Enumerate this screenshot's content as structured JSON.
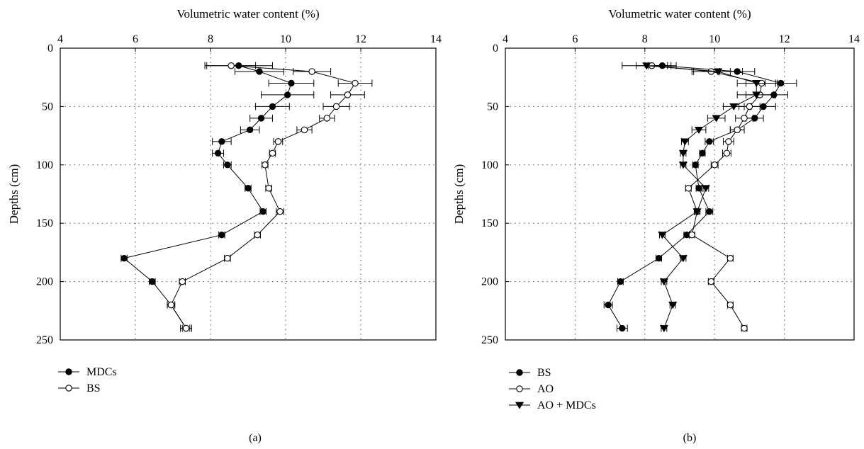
{
  "chart_data": [
    {
      "id": "a",
      "type": "scatter",
      "panel_label": "(a)",
      "xlabel": "Volumetric water content (%)",
      "ylabel": "Depths (cm)",
      "xlim": [
        4,
        14
      ],
      "ylim": [
        0,
        250
      ],
      "y_inverted": true,
      "x_ticks": [
        4,
        6,
        8,
        10,
        12,
        14
      ],
      "y_ticks": [
        0,
        50,
        100,
        150,
        200,
        250
      ],
      "grid": true,
      "legend_position": "below-left",
      "series": [
        {
          "name": "MDCs",
          "marker": "filled-circle",
          "points": [
            {
              "x": 8.75,
              "y": 15,
              "err": 0.9
            },
            {
              "x": 9.3,
              "y": 20,
              "err": 0.65
            },
            {
              "x": 10.15,
              "y": 30,
              "err": 0.6
            },
            {
              "x": 10.05,
              "y": 40,
              "err": 0.7
            },
            {
              "x": 9.65,
              "y": 50,
              "err": 0.45
            },
            {
              "x": 9.35,
              "y": 60,
              "err": 0.3
            },
            {
              "x": 9.05,
              "y": 70,
              "err": 0.25
            },
            {
              "x": 8.3,
              "y": 80,
              "err": 0.25
            },
            {
              "x": 8.2,
              "y": 90,
              "err": 0.15
            },
            {
              "x": 8.45,
              "y": 100,
              "err": 0.1
            },
            {
              "x": 9.0,
              "y": 120,
              "err": 0.08
            },
            {
              "x": 9.4,
              "y": 140,
              "err": 0.08
            },
            {
              "x": 8.3,
              "y": 160,
              "err": 0.08
            },
            {
              "x": 5.7,
              "y": 180,
              "err": 0.08
            },
            {
              "x": 6.45,
              "y": 200,
              "err": 0.08
            },
            {
              "x": 6.95,
              "y": 220,
              "err": 0.1
            },
            {
              "x": 7.35,
              "y": 240,
              "err": 0.15
            }
          ]
        },
        {
          "name": "BS",
          "marker": "open-circle",
          "points": [
            {
              "x": 8.55,
              "y": 15,
              "err": 0.65
            },
            {
              "x": 10.7,
              "y": 20,
              "err": 0.5
            },
            {
              "x": 11.85,
              "y": 30,
              "err": 0.45
            },
            {
              "x": 11.65,
              "y": 40,
              "err": 0.45
            },
            {
              "x": 11.35,
              "y": 50,
              "err": 0.35
            },
            {
              "x": 11.1,
              "y": 60,
              "err": 0.2
            },
            {
              "x": 10.5,
              "y": 70,
              "err": 0.2
            },
            {
              "x": 9.8,
              "y": 80,
              "err": 0.12
            },
            {
              "x": 9.65,
              "y": 90,
              "err": 0.08
            },
            {
              "x": 9.45,
              "y": 100,
              "err": 0.08
            },
            {
              "x": 9.55,
              "y": 120,
              "err": 0.08
            },
            {
              "x": 9.85,
              "y": 140,
              "err": 0.1
            },
            {
              "x": 9.25,
              "y": 160,
              "err": 0.08
            },
            {
              "x": 8.45,
              "y": 180,
              "err": 0.08
            },
            {
              "x": 7.25,
              "y": 200,
              "err": 0.08
            },
            {
              "x": 6.95,
              "y": 220,
              "err": 0.1
            },
            {
              "x": 7.35,
              "y": 240,
              "err": 0.1
            }
          ]
        }
      ]
    },
    {
      "id": "b",
      "type": "scatter",
      "panel_label": "(b)",
      "xlabel": "Volumetric water content (%)",
      "ylabel": "Depths (cm)",
      "xlim": [
        4,
        14
      ],
      "ylim": [
        0,
        250
      ],
      "y_inverted": true,
      "x_ticks": [
        4,
        6,
        8,
        10,
        12,
        14
      ],
      "y_ticks": [
        0,
        50,
        100,
        150,
        200,
        250
      ],
      "grid": true,
      "legend_position": "below-left",
      "series": [
        {
          "name": "BS",
          "marker": "filled-circle",
          "points": [
            {
              "x": 8.5,
              "y": 15,
              "err": 0.4
            },
            {
              "x": 10.65,
              "y": 20,
              "err": 0.5
            },
            {
              "x": 11.9,
              "y": 30,
              "err": 0.45
            },
            {
              "x": 11.7,
              "y": 40,
              "err": 0.4
            },
            {
              "x": 11.4,
              "y": 50,
              "err": 0.35
            },
            {
              "x": 11.15,
              "y": 60,
              "err": 0.25
            },
            {
              "x": 10.65,
              "y": 70,
              "err": 0.2
            },
            {
              "x": 9.85,
              "y": 80,
              "err": 0.12
            },
            {
              "x": 9.65,
              "y": 90,
              "err": 0.08
            },
            {
              "x": 9.45,
              "y": 100,
              "err": 0.08
            },
            {
              "x": 9.55,
              "y": 120,
              "err": 0.08
            },
            {
              "x": 9.85,
              "y": 140,
              "err": 0.1
            },
            {
              "x": 9.2,
              "y": 160,
              "err": 0.08
            },
            {
              "x": 8.4,
              "y": 180,
              "err": 0.08
            },
            {
              "x": 7.3,
              "y": 200,
              "err": 0.08
            },
            {
              "x": 6.95,
              "y": 220,
              "err": 0.12
            },
            {
              "x": 7.35,
              "y": 240,
              "err": 0.15
            }
          ]
        },
        {
          "name": "AO",
          "marker": "open-circle",
          "points": [
            {
              "x": 8.2,
              "y": 15,
              "err": 0.45
            },
            {
              "x": 9.9,
              "y": 20,
              "err": 0.55
            },
            {
              "x": 11.35,
              "y": 30,
              "err": 0.45
            },
            {
              "x": 11.3,
              "y": 40,
              "err": 0.4
            },
            {
              "x": 11.0,
              "y": 50,
              "err": 0.3
            },
            {
              "x": 10.85,
              "y": 60,
              "err": 0.25
            },
            {
              "x": 10.65,
              "y": 70,
              "err": 0.2
            },
            {
              "x": 10.4,
              "y": 80,
              "err": 0.15
            },
            {
              "x": 10.35,
              "y": 90,
              "err": 0.12
            },
            {
              "x": 10.0,
              "y": 100,
              "err": 0.1
            },
            {
              "x": 9.25,
              "y": 120,
              "err": 0.08
            },
            {
              "x": 9.5,
              "y": 140,
              "err": 0.08
            },
            {
              "x": 9.35,
              "y": 160,
              "err": 0.08
            },
            {
              "x": 10.45,
              "y": 180,
              "err": 0.08
            },
            {
              "x": 9.9,
              "y": 200,
              "err": 0.08
            },
            {
              "x": 10.45,
              "y": 220,
              "err": 0.08
            },
            {
              "x": 10.85,
              "y": 240,
              "err": 0.08
            }
          ]
        },
        {
          "name": "AO + MDCs",
          "marker": "filled-triangle-down",
          "points": [
            {
              "x": 8.05,
              "y": 15,
              "err": 0.7
            },
            {
              "x": 10.1,
              "y": 20,
              "err": 0.7
            },
            {
              "x": 11.2,
              "y": 30,
              "err": 0.55
            },
            {
              "x": 11.2,
              "y": 40,
              "err": 0.55
            },
            {
              "x": 10.55,
              "y": 50,
              "err": 0.3
            },
            {
              "x": 10.05,
              "y": 60,
              "err": 0.25
            },
            {
              "x": 9.55,
              "y": 70,
              "err": 0.2
            },
            {
              "x": 9.15,
              "y": 80,
              "err": 0.1
            },
            {
              "x": 9.1,
              "y": 90,
              "err": 0.08
            },
            {
              "x": 9.1,
              "y": 100,
              "err": 0.08
            },
            {
              "x": 9.75,
              "y": 120,
              "err": 0.08
            },
            {
              "x": 9.5,
              "y": 140,
              "err": 0.08
            },
            {
              "x": 8.5,
              "y": 160,
              "err": 0.08
            },
            {
              "x": 9.1,
              "y": 180,
              "err": 0.08
            },
            {
              "x": 8.55,
              "y": 200,
              "err": 0.08
            },
            {
              "x": 8.8,
              "y": 220,
              "err": 0.08
            },
            {
              "x": 8.55,
              "y": 240,
              "err": 0.08
            }
          ]
        }
      ]
    }
  ]
}
